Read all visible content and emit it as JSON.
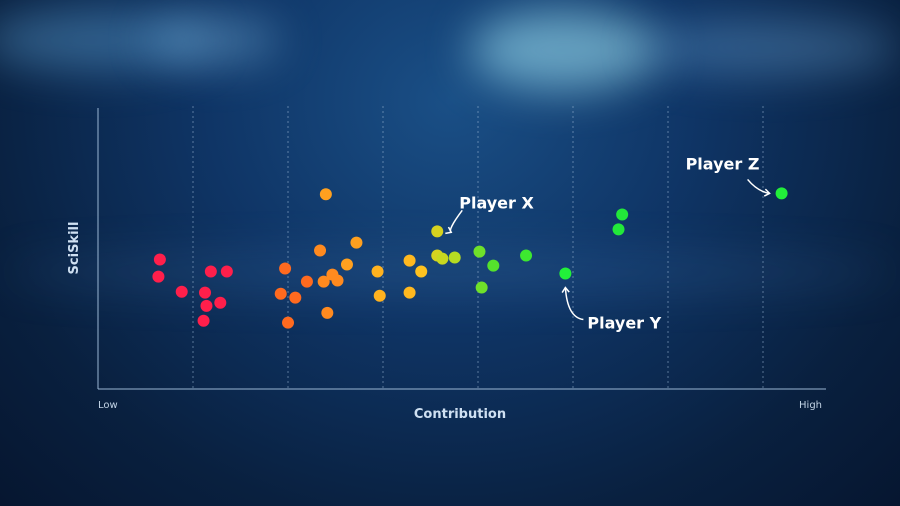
{
  "chart_data": {
    "type": "scatter",
    "xlabel": "Contribution",
    "ylabel": "SciSkill",
    "x_tick_labels": {
      "low": "Low",
      "high": "High"
    },
    "xlim": [
      0,
      1
    ],
    "ylim": [
      0,
      1
    ],
    "grid": {
      "vertical": true,
      "horizontal": false,
      "style": "dotted"
    },
    "points": [
      {
        "x": 0.085,
        "y": 0.461,
        "color": "#ff1f4b"
      },
      {
        "x": 0.083,
        "y": 0.4,
        "color": "#ff1f4b"
      },
      {
        "x": 0.115,
        "y": 0.346,
        "color": "#ff1f4b"
      },
      {
        "x": 0.155,
        "y": 0.418,
        "color": "#ff1f4b"
      },
      {
        "x": 0.177,
        "y": 0.418,
        "color": "#ff1f4b"
      },
      {
        "x": 0.147,
        "y": 0.343,
        "color": "#ff1f4b"
      },
      {
        "x": 0.149,
        "y": 0.296,
        "color": "#ff1f4b"
      },
      {
        "x": 0.168,
        "y": 0.307,
        "color": "#ff1f4b"
      },
      {
        "x": 0.145,
        "y": 0.243,
        "color": "#ff1f4b"
      },
      {
        "x": 0.257,
        "y": 0.429,
        "color": "#ff6a1f"
      },
      {
        "x": 0.251,
        "y": 0.339,
        "color": "#ff6a1f"
      },
      {
        "x": 0.271,
        "y": 0.325,
        "color": "#ff6a1f"
      },
      {
        "x": 0.287,
        "y": 0.382,
        "color": "#ff6a1f"
      },
      {
        "x": 0.261,
        "y": 0.236,
        "color": "#ff6a1f"
      },
      {
        "x": 0.305,
        "y": 0.493,
        "color": "#ff8a1f"
      },
      {
        "x": 0.31,
        "y": 0.382,
        "color": "#ff8a1f"
      },
      {
        "x": 0.322,
        "y": 0.407,
        "color": "#ff8a1f"
      },
      {
        "x": 0.329,
        "y": 0.386,
        "color": "#ff8a1f"
      },
      {
        "x": 0.315,
        "y": 0.271,
        "color": "#ff8a1f"
      },
      {
        "x": 0.313,
        "y": 0.693,
        "color": "#ffa01f"
      },
      {
        "x": 0.342,
        "y": 0.443,
        "color": "#ffa01f"
      },
      {
        "x": 0.355,
        "y": 0.521,
        "color": "#ffa01f"
      },
      {
        "x": 0.384,
        "y": 0.418,
        "color": "#ffb21f"
      },
      {
        "x": 0.387,
        "y": 0.332,
        "color": "#ffb21f"
      },
      {
        "x": 0.428,
        "y": 0.457,
        "color": "#ffb81f"
      },
      {
        "x": 0.444,
        "y": 0.418,
        "color": "#ffc21f"
      },
      {
        "x": 0.428,
        "y": 0.343,
        "color": "#ffb81f"
      },
      {
        "x": 0.466,
        "y": 0.561,
        "color": "#d6d21f",
        "label": "Player X"
      },
      {
        "x": 0.466,
        "y": 0.475,
        "color": "#d6d21f"
      },
      {
        "x": 0.473,
        "y": 0.464,
        "color": "#c8d820"
      },
      {
        "x": 0.49,
        "y": 0.468,
        "color": "#b6dc22"
      },
      {
        "x": 0.524,
        "y": 0.489,
        "color": "#6fe12a"
      },
      {
        "x": 0.543,
        "y": 0.439,
        "color": "#55e22c"
      },
      {
        "x": 0.527,
        "y": 0.361,
        "color": "#6fe12a"
      },
      {
        "x": 0.588,
        "y": 0.475,
        "color": "#3de830"
      },
      {
        "x": 0.642,
        "y": 0.411,
        "color": "#22f03a",
        "label": "Player Y"
      },
      {
        "x": 0.72,
        "y": 0.621,
        "color": "#22e83a"
      },
      {
        "x": 0.715,
        "y": 0.568,
        "color": "#22e83a"
      },
      {
        "x": 0.939,
        "y": 0.696,
        "color": "#22ee3a",
        "label": "Player Z"
      }
    ],
    "annotations": [
      "Player X",
      "Player Y",
      "Player Z"
    ]
  }
}
